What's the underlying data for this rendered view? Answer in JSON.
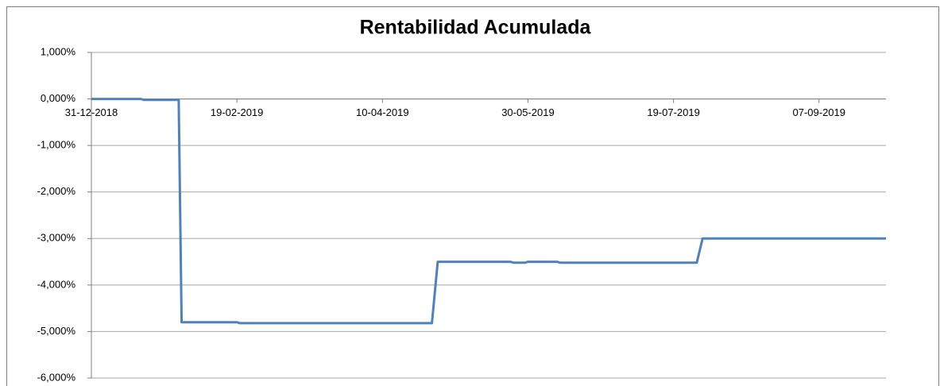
{
  "chart_data": {
    "type": "line",
    "title": "Rentabilidad Acumulada",
    "x": [
      "2018-12-31",
      "2019-01-17",
      "2019-01-18",
      "2019-01-30",
      "2019-01-31",
      "2019-02-19",
      "2019-02-20",
      "2019-04-27",
      "2019-04-29",
      "2019-05-24",
      "2019-05-25",
      "2019-05-29",
      "2019-05-30",
      "2019-06-09",
      "2019-06-10",
      "2019-07-27",
      "2019-07-29",
      "2019-09-30"
    ],
    "series": [
      {
        "name": "Rentabilidad Acumulada",
        "color": "#4f81bd",
        "values": [
          0,
          0,
          -0.02,
          -0.02,
          -4.8,
          -4.8,
          -4.82,
          -4.82,
          -3.5,
          -3.5,
          -3.52,
          -3.52,
          -3.5,
          -3.5,
          -3.52,
          -3.52,
          -3.0,
          -3.0
        ]
      }
    ],
    "xlim": [
      "2018-12-31",
      "2019-09-30"
    ],
    "xticks": [
      {
        "value": "2018-12-31",
        "label": "31-12-2018"
      },
      {
        "value": "2019-02-19",
        "label": "19-02-2019"
      },
      {
        "value": "2019-04-10",
        "label": "10-04-2019"
      },
      {
        "value": "2019-05-30",
        "label": "30-05-2019"
      },
      {
        "value": "2019-07-19",
        "label": "19-07-2019"
      },
      {
        "value": "2019-09-07",
        "label": "07-09-2019"
      }
    ],
    "ylim": [
      -6,
      1
    ],
    "yticks": [
      {
        "value": 1,
        "label": "1,000%"
      },
      {
        "value": 0,
        "label": "0,000%"
      },
      {
        "value": -1,
        "label": "-1,000%"
      },
      {
        "value": -2,
        "label": "-2,000%"
      },
      {
        "value": -3,
        "label": "-3,000%"
      },
      {
        "value": -4,
        "label": "-4,000%"
      },
      {
        "value": -5,
        "label": "-5,000%"
      },
      {
        "value": -6,
        "label": "-6,000%"
      }
    ],
    "grid": true
  }
}
